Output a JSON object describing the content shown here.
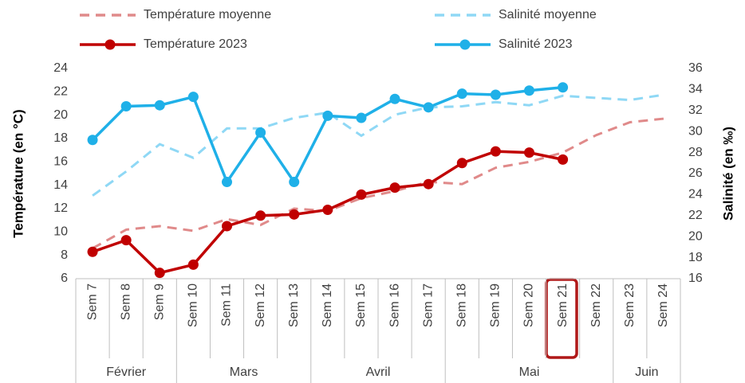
{
  "chart_data": {
    "type": "line",
    "categories": [
      "Sem 7",
      "Sem 8",
      "Sem 9",
      "Sem 10",
      "Sem 11",
      "Sem 12",
      "Sem 13",
      "Sem 14",
      "Sem 15",
      "Sem 16",
      "Sem 17",
      "Sem 18",
      "Sem 19",
      "Sem 20",
      "Sem 21",
      "Sem 22",
      "Sem 23",
      "Sem 24"
    ],
    "groups": [
      "Février",
      null,
      null,
      "Mars",
      null,
      null,
      null,
      "Avril",
      null,
      null,
      null,
      "Mai",
      null,
      null,
      null,
      null,
      "Juin",
      null
    ],
    "ylabel": "Température (en °C)",
    "y2label": "Salinité (en ‰)",
    "ylim": [
      6,
      24
    ],
    "yticks": [
      6,
      8,
      10,
      12,
      14,
      16,
      18,
      20,
      22,
      24
    ],
    "y2lim": [
      16,
      36
    ],
    "y2ticks": [
      16,
      18,
      20,
      22,
      24,
      26,
      28,
      30,
      32,
      34,
      36
    ],
    "grid": false,
    "legend": "top",
    "series": [
      {
        "name": "Température moyenne",
        "color": "#e08a8a",
        "style": "dashed",
        "marker": false,
        "values": [
          8.6,
          10.2,
          10.5,
          10.1,
          11.1,
          10.6,
          12.0,
          11.8,
          12.9,
          13.5,
          14.3,
          14.1,
          15.5,
          16.0,
          16.8,
          18.3,
          19.4,
          19.7
        ]
      },
      {
        "name": "Salinité moyenne",
        "color": "#8fd8f5",
        "style": "dashed",
        "marker": false,
        "axis": "y2",
        "values": [
          23.9,
          26.2,
          28.8,
          27.5,
          30.3,
          30.3,
          31.3,
          31.8,
          29.6,
          31.6,
          32.3,
          32.4,
          32.8,
          32.5,
          33.4,
          33.2,
          33.0,
          33.5
        ]
      },
      {
        "name": "Température 2023",
        "color": "#c00000",
        "style": "solid",
        "marker": true,
        "values": [
          8.3,
          9.3,
          6.5,
          7.2,
          10.5,
          11.4,
          11.5,
          11.9,
          13.2,
          13.8,
          14.1,
          15.9,
          16.9,
          16.8,
          16.2,
          null,
          null,
          null
        ]
      },
      {
        "name": "Salinité 2023",
        "color": "#1fb0e8",
        "style": "solid",
        "marker": true,
        "axis": "y2",
        "values": [
          29.2,
          32.4,
          32.5,
          33.3,
          25.2,
          29.9,
          25.2,
          31.5,
          31.3,
          33.1,
          32.3,
          33.6,
          33.5,
          33.9,
          34.2,
          null,
          null,
          null
        ]
      }
    ]
  }
}
